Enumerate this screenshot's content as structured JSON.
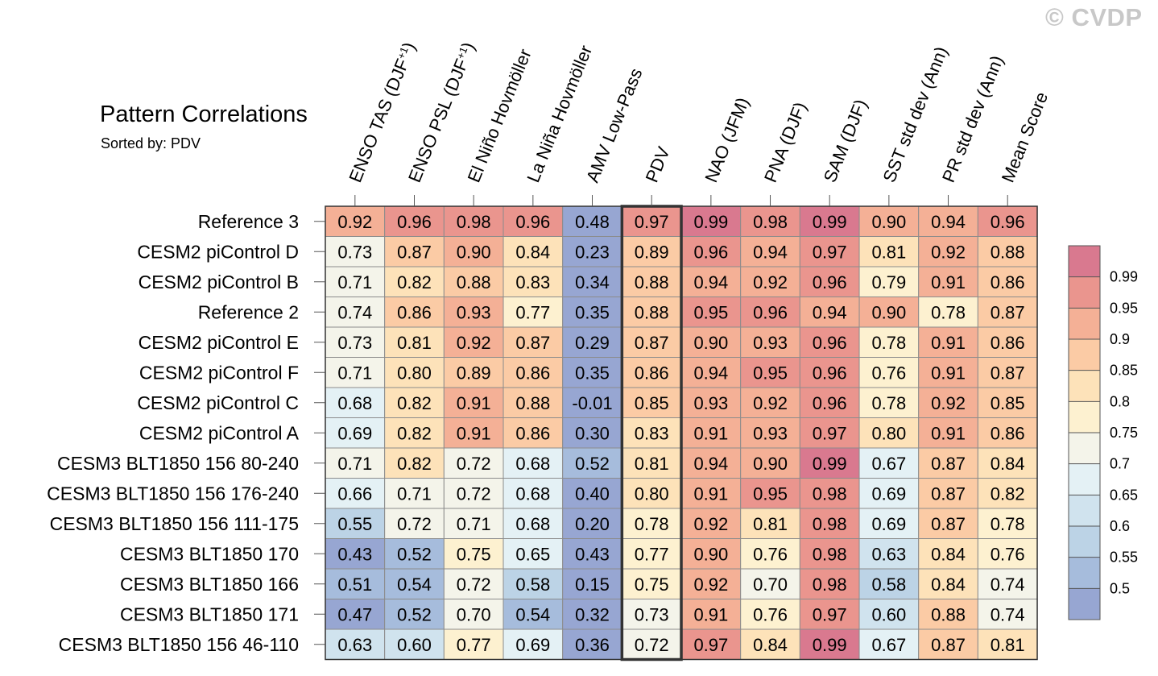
{
  "watermark": "© CVDP",
  "chart_data": {
    "type": "heatmap",
    "title": "Pattern Correlations",
    "subtitle": "Sorted by: PDV",
    "highlight_column": "PDV",
    "columns": [
      "ENSO TAS (DJF+1)",
      "ENSO PSL (DJF+1)",
      "El Niño Hovmöller",
      "La Niña Hovmöller",
      "AMV Low-Pass",
      "PDV",
      "NAO (JFM)",
      "PNA (DJF)",
      "SAM (DJF)",
      "SST std dev (Ann)",
      "PR std dev (Ann)",
      "Mean Score"
    ],
    "rows": [
      {
        "name": "Reference 3",
        "values": [
          "0.92",
          "0.96",
          "0.98",
          "0.96",
          "0.48",
          "0.97",
          "0.99",
          "0.98",
          "0.99",
          "0.90",
          "0.94",
          "0.96"
        ]
      },
      {
        "name": "CESM2 piControl D",
        "values": [
          "0.73",
          "0.87",
          "0.90",
          "0.84",
          "0.23",
          "0.89",
          "0.96",
          "0.94",
          "0.97",
          "0.81",
          "0.92",
          "0.88"
        ]
      },
      {
        "name": "CESM2 piControl B",
        "values": [
          "0.71",
          "0.82",
          "0.88",
          "0.83",
          "0.34",
          "0.88",
          "0.94",
          "0.92",
          "0.96",
          "0.79",
          "0.91",
          "0.86"
        ]
      },
      {
        "name": "Reference 2",
        "values": [
          "0.74",
          "0.86",
          "0.93",
          "0.77",
          "0.35",
          "0.88",
          "0.95",
          "0.96",
          "0.94",
          "0.90",
          "0.78",
          "0.87"
        ]
      },
      {
        "name": "CESM2 piControl E",
        "values": [
          "0.73",
          "0.81",
          "0.92",
          "0.87",
          "0.29",
          "0.87",
          "0.90",
          "0.93",
          "0.96",
          "0.78",
          "0.91",
          "0.86"
        ]
      },
      {
        "name": "CESM2 piControl F",
        "values": [
          "0.71",
          "0.80",
          "0.89",
          "0.86",
          "0.35",
          "0.86",
          "0.94",
          "0.95",
          "0.96",
          "0.76",
          "0.91",
          "0.87"
        ]
      },
      {
        "name": "CESM2 piControl C",
        "values": [
          "0.68",
          "0.82",
          "0.91",
          "0.88",
          "-0.01",
          "0.85",
          "0.93",
          "0.92",
          "0.96",
          "0.78",
          "0.92",
          "0.85"
        ]
      },
      {
        "name": "CESM2 piControl A",
        "values": [
          "0.69",
          "0.82",
          "0.91",
          "0.86",
          "0.30",
          "0.83",
          "0.91",
          "0.93",
          "0.97",
          "0.80",
          "0.91",
          "0.86"
        ]
      },
      {
        "name": "CESM3 BLT1850 156 80-240",
        "values": [
          "0.71",
          "0.82",
          "0.72",
          "0.68",
          "0.52",
          "0.81",
          "0.94",
          "0.90",
          "0.99",
          "0.67",
          "0.87",
          "0.84"
        ]
      },
      {
        "name": "CESM3 BLT1850 156 176-240",
        "values": [
          "0.66",
          "0.71",
          "0.72",
          "0.68",
          "0.40",
          "0.80",
          "0.91",
          "0.95",
          "0.98",
          "0.69",
          "0.87",
          "0.82"
        ]
      },
      {
        "name": "CESM3 BLT1850 156 111-175",
        "values": [
          "0.55",
          "0.72",
          "0.71",
          "0.68",
          "0.20",
          "0.78",
          "0.92",
          "0.81",
          "0.98",
          "0.69",
          "0.87",
          "0.78"
        ]
      },
      {
        "name": "CESM3 BLT1850 170",
        "values": [
          "0.43",
          "0.52",
          "0.75",
          "0.65",
          "0.43",
          "0.77",
          "0.90",
          "0.76",
          "0.98",
          "0.63",
          "0.84",
          "0.76"
        ]
      },
      {
        "name": "CESM3 BLT1850 166",
        "values": [
          "0.51",
          "0.54",
          "0.72",
          "0.58",
          "0.15",
          "0.75",
          "0.92",
          "0.70",
          "0.98",
          "0.58",
          "0.84",
          "0.74"
        ]
      },
      {
        "name": "CESM3 BLT1850 171",
        "values": [
          "0.47",
          "0.52",
          "0.70",
          "0.54",
          "0.32",
          "0.73",
          "0.91",
          "0.76",
          "0.97",
          "0.60",
          "0.88",
          "0.74"
        ]
      },
      {
        "name": "CESM3 BLT1850 156 46-110",
        "values": [
          "0.63",
          "0.60",
          "0.77",
          "0.69",
          "0.36",
          "0.72",
          "0.97",
          "0.84",
          "0.99",
          "0.67",
          "0.87",
          "0.81"
        ]
      }
    ],
    "colorbar": {
      "thresholds": [
        0.5,
        0.55,
        0.6,
        0.65,
        0.7,
        0.75,
        0.8,
        0.85,
        0.9,
        0.95,
        0.99
      ],
      "labels": [
        "0.5",
        "0.55",
        "0.6",
        "0.65",
        "0.7",
        "0.75",
        "0.8",
        "0.85",
        "0.9",
        "0.95",
        "0.99"
      ],
      "colors": [
        "#97a6d2",
        "#a6bcdc",
        "#bcd3e6",
        "#d0e3ee",
        "#e4f1f5",
        "#f4f4ea",
        "#fdf1d0",
        "#fde2b9",
        "#fbcba5",
        "#f4b096",
        "#ea958e",
        "#d9798f"
      ]
    }
  }
}
